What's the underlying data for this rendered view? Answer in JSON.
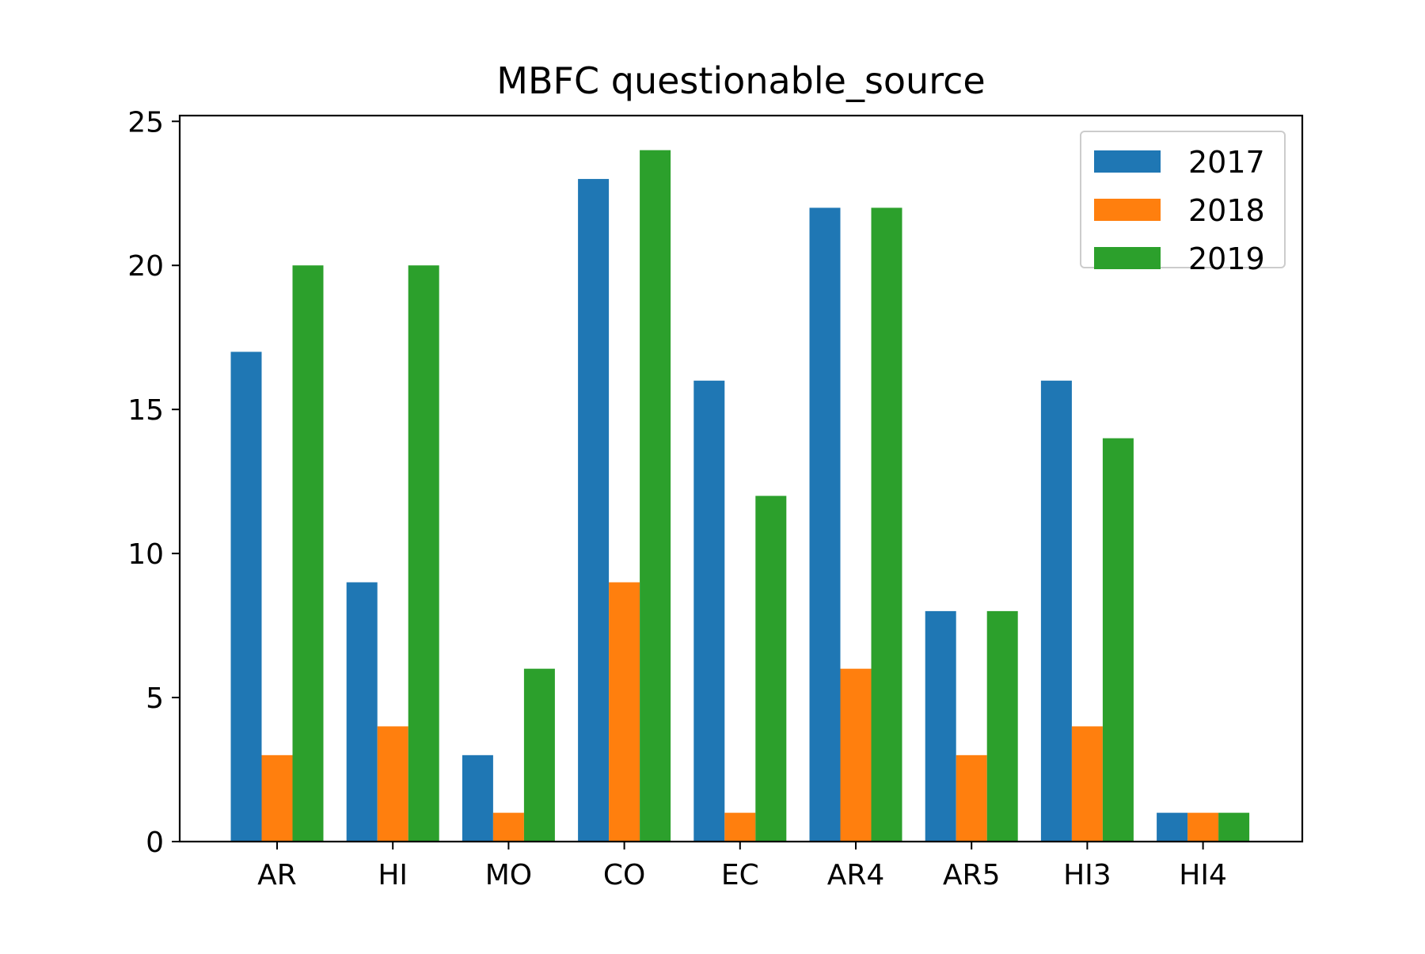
{
  "chart_data": {
    "type": "bar",
    "title": "MBFC questionable_source",
    "xlabel": "",
    "ylabel": "",
    "categories": [
      "AR",
      "HI",
      "MO",
      "CO",
      "EC",
      "AR4",
      "AR5",
      "HI3",
      "HI4"
    ],
    "series": [
      {
        "name": "2017",
        "color": "#1f77b4",
        "values": [
          17,
          9,
          3,
          23,
          16,
          22,
          8,
          16,
          1
        ]
      },
      {
        "name": "2018",
        "color": "#ff7f0e",
        "values": [
          3,
          4,
          1,
          9,
          1,
          6,
          3,
          4,
          1
        ]
      },
      {
        "name": "2019",
        "color": "#2ca02c",
        "values": [
          20,
          20,
          6,
          24,
          12,
          22,
          8,
          14,
          1
        ]
      }
    ],
    "ylim": [
      0,
      25.2
    ],
    "yticks": [
      0,
      5,
      10,
      15,
      20,
      25
    ],
    "grid": false,
    "legend_position": "top-right"
  }
}
